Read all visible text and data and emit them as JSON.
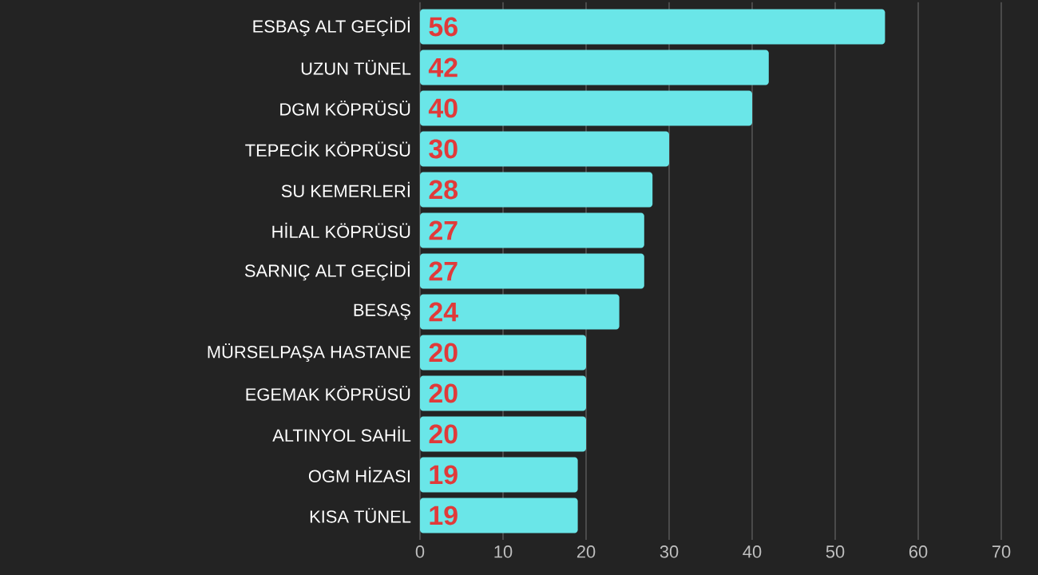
{
  "chart_data": {
    "type": "bar",
    "orientation": "horizontal",
    "categories": [
      "ESBAŞ ALT GEÇİDİ",
      "UZUN TÜNEL",
      "DGM KÖPRÜSÜ",
      "TEPECİK KÖPRÜSÜ",
      "SU KEMERLERİ",
      "HİLAL KÖPRÜSÜ",
      "SARNIÇ ALT GEÇİDİ",
      "BESAŞ",
      "MÜRSELPAŞA HASTANE",
      "EGEMAK KÖPRÜSÜ",
      "ALTINYOL SAHİL",
      "OGM HİZASI",
      "KISA TÜNEL"
    ],
    "values": [
      56,
      42,
      40,
      30,
      28,
      27,
      27,
      24,
      20,
      20,
      20,
      19,
      19
    ],
    "color": "#6ae6e8",
    "xlim": [
      0,
      70
    ],
    "xticks": [
      0,
      10,
      20,
      30,
      40,
      50,
      60,
      70
    ],
    "grid": "x",
    "data_labels": true
  }
}
